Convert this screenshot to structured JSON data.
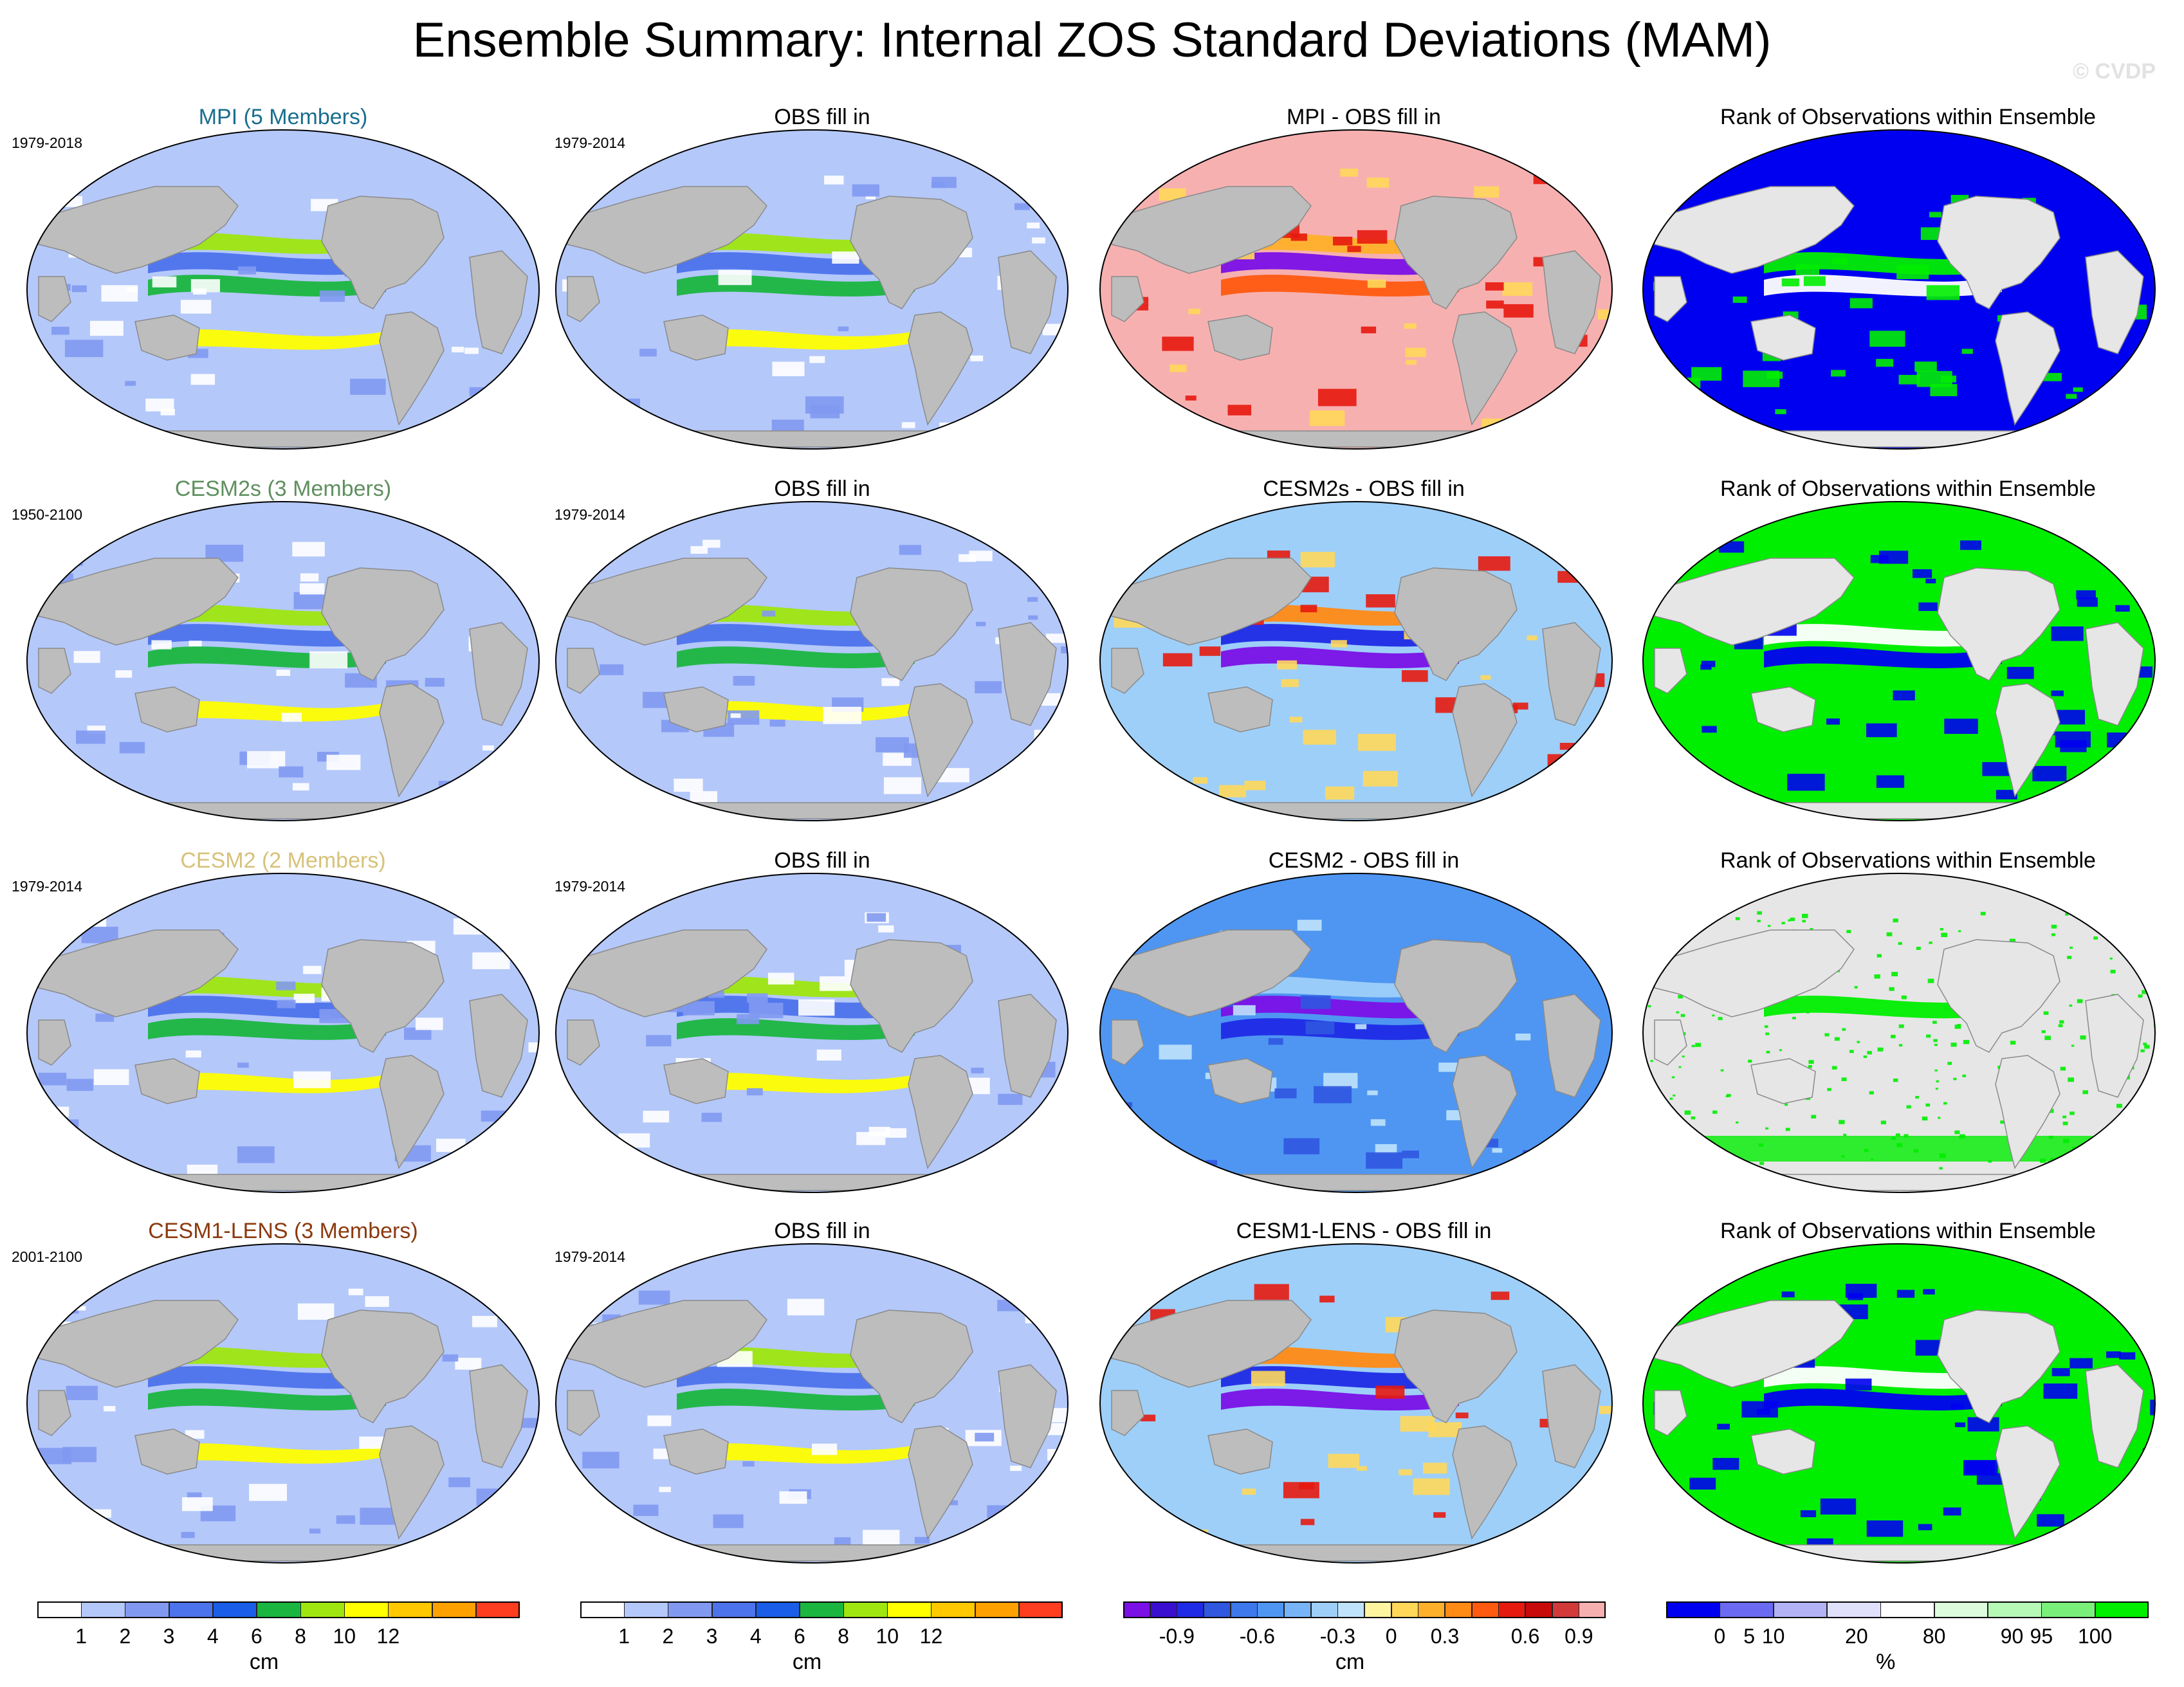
{
  "title": "Ensemble Summary: Internal ZOS Standard Deviations (MAM)",
  "watermark": "© CVDP",
  "rows": [
    {
      "model_title": "MPI (5 Members)",
      "model_color": "#1a6e8e",
      "model_period": "1979-2018",
      "obs_title": "OBS fill in",
      "obs_period": "1979-2014",
      "diff_title": "MPI - OBS fill in",
      "rank_title": "Rank of Observations within Ensemble"
    },
    {
      "model_title": "CESM2s (3 Members)",
      "model_color": "#5f8f5f",
      "model_period": "1950-2100",
      "obs_title": "OBS fill in",
      "obs_period": "1979-2014",
      "diff_title": "CESM2s - OBS fill in",
      "rank_title": "Rank of Observations within Ensemble"
    },
    {
      "model_title": "CESM2 (2 Members)",
      "model_color": "#d7c27a",
      "model_period": "1979-2014",
      "obs_title": "OBS fill in",
      "obs_period": "1979-2014",
      "diff_title": "CESM2 - OBS fill in",
      "rank_title": "Rank of Observations within Ensemble"
    },
    {
      "model_title": "CESM1-LENS (3 Members)",
      "model_color": "#8b3a0f",
      "model_period": "2001-2100",
      "obs_title": "OBS fill in",
      "obs_period": "1979-2014",
      "diff_title": "CESM1-LENS - OBS fill in",
      "rank_title": "Rank of Observations within Ensemble"
    }
  ],
  "colorbars": [
    {
      "unit": "cm",
      "colors": [
        "#ffffff",
        "#b4c8fa",
        "#8199f1",
        "#4d73ec",
        "#1a5ee8",
        "#1bb640",
        "#9fe610",
        "#ffff00",
        "#ffc800",
        "#ffa100",
        "#ff3d1f"
      ],
      "ticks": [
        "1",
        "2",
        "3",
        "4",
        "6",
        "8",
        "10",
        "12"
      ]
    },
    {
      "unit": "cm",
      "colors": [
        "#ffffff",
        "#b4c8fa",
        "#8199f1",
        "#4d73ec",
        "#1a5ee8",
        "#1bb640",
        "#9fe610",
        "#ffff00",
        "#ffc800",
        "#ffa100",
        "#ff3d1f"
      ],
      "ticks": [
        "1",
        "2",
        "3",
        "4",
        "6",
        "8",
        "10",
        "12"
      ]
    },
    {
      "unit": "cm",
      "colors": [
        "#7a10e6",
        "#3a0fd0",
        "#1f2ae6",
        "#2f57e0",
        "#3d78ec",
        "#4f96f2",
        "#78b4f8",
        "#9ecff9",
        "#bfe3fb",
        "#fff5a0",
        "#ffd85a",
        "#ffb02a",
        "#ff8a15",
        "#ff5a10",
        "#e61a0f",
        "#c80a0a",
        "#d23a3a",
        "#f7b0b0"
      ],
      "ticks": [
        "-0.9",
        "-0.6",
        "-0.3",
        "0",
        "0.3",
        "0.6",
        "0.9"
      ]
    },
    {
      "unit": "%",
      "colors": [
        "#0000f0",
        "#6a6af2",
        "#b2b2f5",
        "#e0e0fb",
        "#ffffff",
        "#dcfcdc",
        "#b6f8b6",
        "#7af07a",
        "#00ee00"
      ],
      "ticks": [
        "0",
        "5",
        "10",
        "20",
        "80",
        "90",
        "95",
        "100"
      ]
    }
  ]
}
